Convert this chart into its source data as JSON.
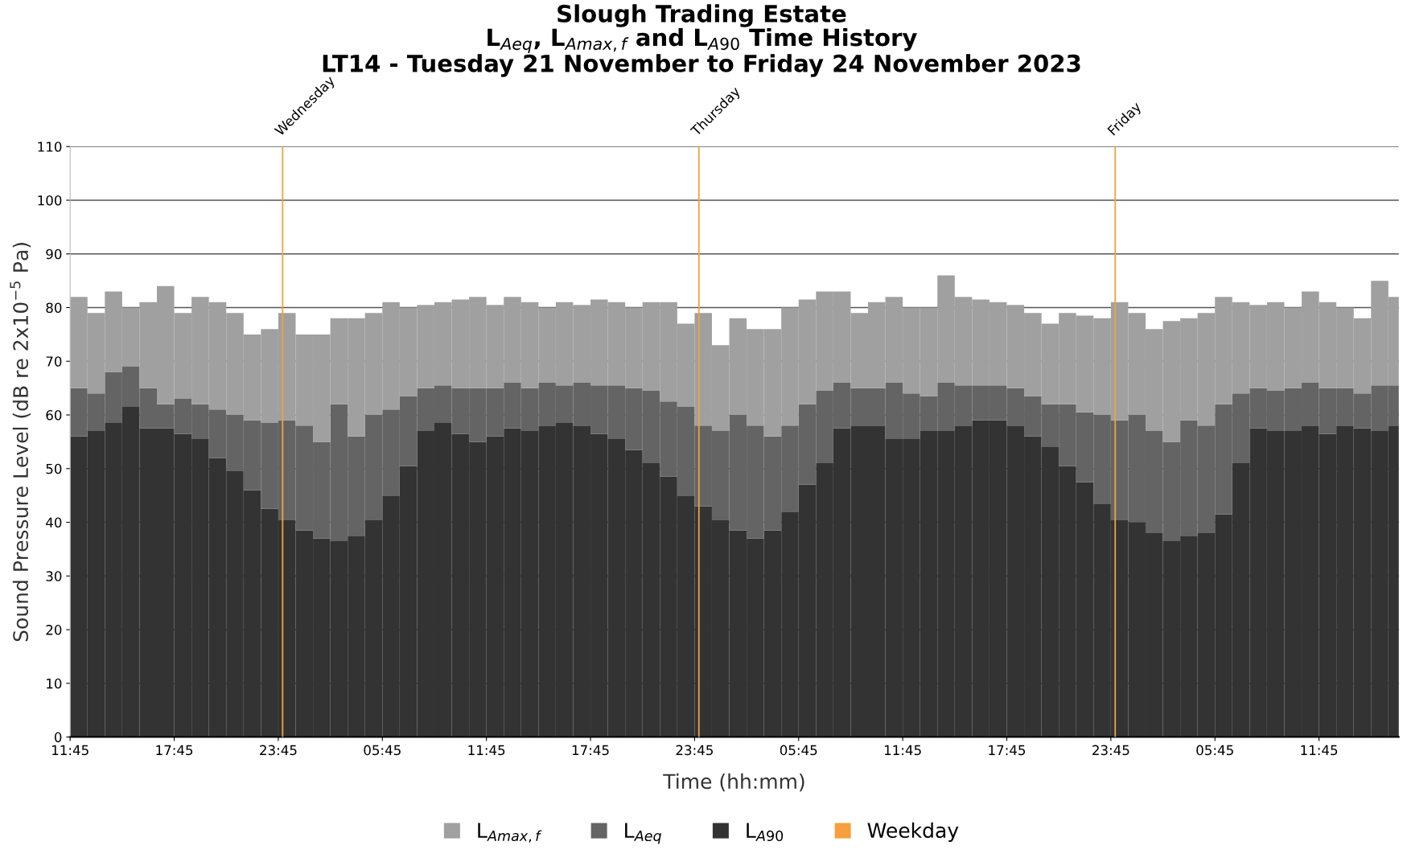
{
  "chart_data": {
    "type": "bar",
    "stacked": true,
    "title": "Slough Trading Estate\nL$_{Aeq}$, L$_{Amax,f}$ and L$_{A90}$ Time History\nLT14 - Tuesday 21 November to Friday 24 November 2023",
    "xlabel": "Time (hh:mm)",
    "ylabel": "Sound Pressure Level (dB re 2x10$^{−5}$ Pa)",
    "x": [
      "2023-11-21T12:15",
      "2023-11-21T13:15",
      "2023-11-21T14:15",
      "2023-11-21T15:15",
      "2023-11-21T16:15",
      "2023-11-21T17:15",
      "2023-11-21T18:15",
      "2023-11-21T19:15",
      "2023-11-21T20:15",
      "2023-11-21T21:15",
      "2023-11-21T22:15",
      "2023-11-21T23:15",
      "2023-11-22T00:15",
      "2023-11-22T01:15",
      "2023-11-22T02:15",
      "2023-11-22T03:15",
      "2023-11-22T04:15",
      "2023-11-22T05:15",
      "2023-11-22T06:15",
      "2023-11-22T07:15",
      "2023-11-22T08:15",
      "2023-11-22T09:15",
      "2023-11-22T10:15",
      "2023-11-22T11:15",
      "2023-11-22T12:15",
      "2023-11-22T13:15",
      "2023-11-22T14:15",
      "2023-11-22T15:15",
      "2023-11-22T16:15",
      "2023-11-22T17:15",
      "2023-11-22T18:15",
      "2023-11-22T19:15",
      "2023-11-22T20:15",
      "2023-11-22T21:15",
      "2023-11-22T22:15",
      "2023-11-22T23:15",
      "2023-11-23T00:15",
      "2023-11-23T01:15",
      "2023-11-23T02:15",
      "2023-11-23T03:15",
      "2023-11-23T04:15",
      "2023-11-23T05:15",
      "2023-11-23T06:15",
      "2023-11-23T07:15",
      "2023-11-23T08:15",
      "2023-11-23T09:15",
      "2023-11-23T10:15",
      "2023-11-23T11:15",
      "2023-11-23T12:15",
      "2023-11-23T13:15",
      "2023-11-23T14:15",
      "2023-11-23T15:15",
      "2023-11-23T16:15",
      "2023-11-23T17:15",
      "2023-11-23T18:15",
      "2023-11-23T19:15",
      "2023-11-23T20:15",
      "2023-11-23T21:15",
      "2023-11-23T22:15",
      "2023-11-23T23:15",
      "2023-11-24T00:15",
      "2023-11-24T01:15",
      "2023-11-24T02:15",
      "2023-11-24T03:15",
      "2023-11-24T04:15",
      "2023-11-24T05:15",
      "2023-11-24T06:15",
      "2023-11-24T07:15",
      "2023-11-24T08:15",
      "2023-11-24T09:15",
      "2023-11-24T10:15",
      "2023-11-24T11:15",
      "2023-11-24T12:15",
      "2023-11-24T13:15",
      "2023-11-24T14:15",
      "2023-11-24T15:15",
      "2023-11-24T16:15"
    ],
    "series": [
      {
        "name": "L$_{A90}$",
        "color": "#333333",
        "values": [
          56,
          57,
          58.5,
          61.5,
          57.5,
          57.5,
          56.5,
          55.5,
          52,
          49.5,
          46,
          42.5,
          40.5,
          38.5,
          37,
          36.5,
          37.5,
          40.5,
          45,
          50.5,
          57,
          58.5,
          56.5,
          55,
          56,
          57.5,
          57,
          58,
          58.5,
          58,
          56.5,
          55.5,
          53.5,
          51,
          48.5,
          45,
          43,
          40.5,
          38.5,
          37,
          38.5,
          42,
          47,
          51,
          57.5,
          58,
          58,
          55.5,
          55.5,
          57,
          57,
          58,
          59,
          59,
          58,
          56,
          54,
          50.5,
          47.5,
          43.5,
          40.5,
          40,
          38,
          36.5,
          37.5,
          38,
          41.5,
          51,
          57.5,
          57,
          57,
          58,
          56.5,
          58,
          57.5,
          57,
          58
        ]
      },
      {
        "name": "L$_{Aeq}$",
        "color": "#646464",
        "values": [
          9,
          7,
          9.5,
          7.5,
          7.5,
          4.5,
          6.5,
          6.5,
          9,
          10.5,
          13,
          16,
          18.5,
          19.5,
          18,
          25.5,
          18.5,
          19.5,
          16,
          13,
          8,
          7,
          8.5,
          10,
          9,
          8.5,
          8,
          8,
          7,
          8,
          9,
          10,
          11.5,
          13.5,
          14,
          16.5,
          15,
          16.5,
          21.5,
          21,
          17.5,
          16,
          15,
          13.5,
          8.5,
          7,
          7,
          10.5,
          8.5,
          6.5,
          9,
          7.5,
          6.5,
          6.5,
          7,
          7.5,
          8,
          11.5,
          13,
          16.5,
          18.5,
          20,
          19,
          18.5,
          21.5,
          20,
          20.5,
          13,
          7.5,
          7.5,
          8,
          8,
          8.5,
          7,
          6.5,
          8.5,
          7.5
        ]
      },
      {
        "name": "L$_{Amax,f}$",
        "color": "#a0a0a0",
        "values": [
          17,
          15,
          15,
          11,
          16,
          22,
          16,
          20,
          20,
          19,
          16,
          17.5,
          20,
          17,
          20,
          16,
          22,
          19,
          20,
          16.5,
          15.5,
          15.5,
          16.5,
          17,
          15.5,
          16,
          16,
          14,
          15.5,
          14.5,
          16,
          15.5,
          15,
          16.5,
          18.5,
          15.5,
          21,
          16,
          18,
          18,
          20,
          22,
          19.5,
          18.5,
          17,
          14,
          16,
          16,
          16,
          16.5,
          20,
          16.5,
          16,
          15.5,
          15.5,
          15.5,
          15,
          17,
          18,
          18,
          22,
          19,
          19,
          22.5,
          19,
          21,
          20,
          17,
          15.5,
          16.5,
          15,
          17,
          16,
          15,
          14,
          19.5,
          16.5
        ]
      }
    ],
    "ref_lines": [
      {
        "axis": "x",
        "value": "2023-11-22T00:00",
        "label": "Weekday",
        "color": "#f5a03c"
      },
      {
        "axis": "x",
        "value": "2023-11-23T00:00",
        "color": "#f5a03c"
      },
      {
        "axis": "x",
        "value": "2023-11-24T00:00",
        "color": "#f5a03c"
      }
    ],
    "annotations": [
      {
        "text": "Wednesday",
        "x": "2023-11-22T00:00",
        "y": 110
      },
      {
        "text": "Thursday",
        "x": "2023-11-23T00:00",
        "y": 110
      },
      {
        "text": "Friday",
        "x": "2023-11-24T00:00",
        "y": 110
      }
    ],
    "xlim": [
      "2023-11-21T11:45",
      "2023-11-24T16:21"
    ],
    "xticks": [
      {
        "value": "2023-11-21T11:45",
        "label": "11:45"
      },
      {
        "value": "2023-11-21T17:45",
        "label": "17:45"
      },
      {
        "value": "2023-11-21T23:45",
        "label": "23:45"
      },
      {
        "value": "2023-11-22T05:45",
        "label": "05:45"
      },
      {
        "value": "2023-11-22T11:45",
        "label": "11:45"
      },
      {
        "value": "2023-11-22T17:45",
        "label": "17:45"
      },
      {
        "value": "2023-11-22T23:45",
        "label": "23:45"
      },
      {
        "value": "2023-11-23T05:45",
        "label": "05:45"
      },
      {
        "value": "2023-11-23T11:45",
        "label": "11:45"
      },
      {
        "value": "2023-11-23T17:45",
        "label": "17:45"
      },
      {
        "value": "2023-11-23T23:45",
        "label": "23:45"
      },
      {
        "value": "2023-11-24T05:45",
        "label": "05:45"
      },
      {
        "value": "2023-11-24T11:45",
        "label": "11:45"
      }
    ],
    "ylim": [
      0,
      110
    ],
    "yticks": [
      0,
      10,
      20,
      30,
      40,
      50,
      60,
      70,
      80,
      90,
      100,
      110
    ],
    "grid": "y",
    "legend": "bottom"
  }
}
